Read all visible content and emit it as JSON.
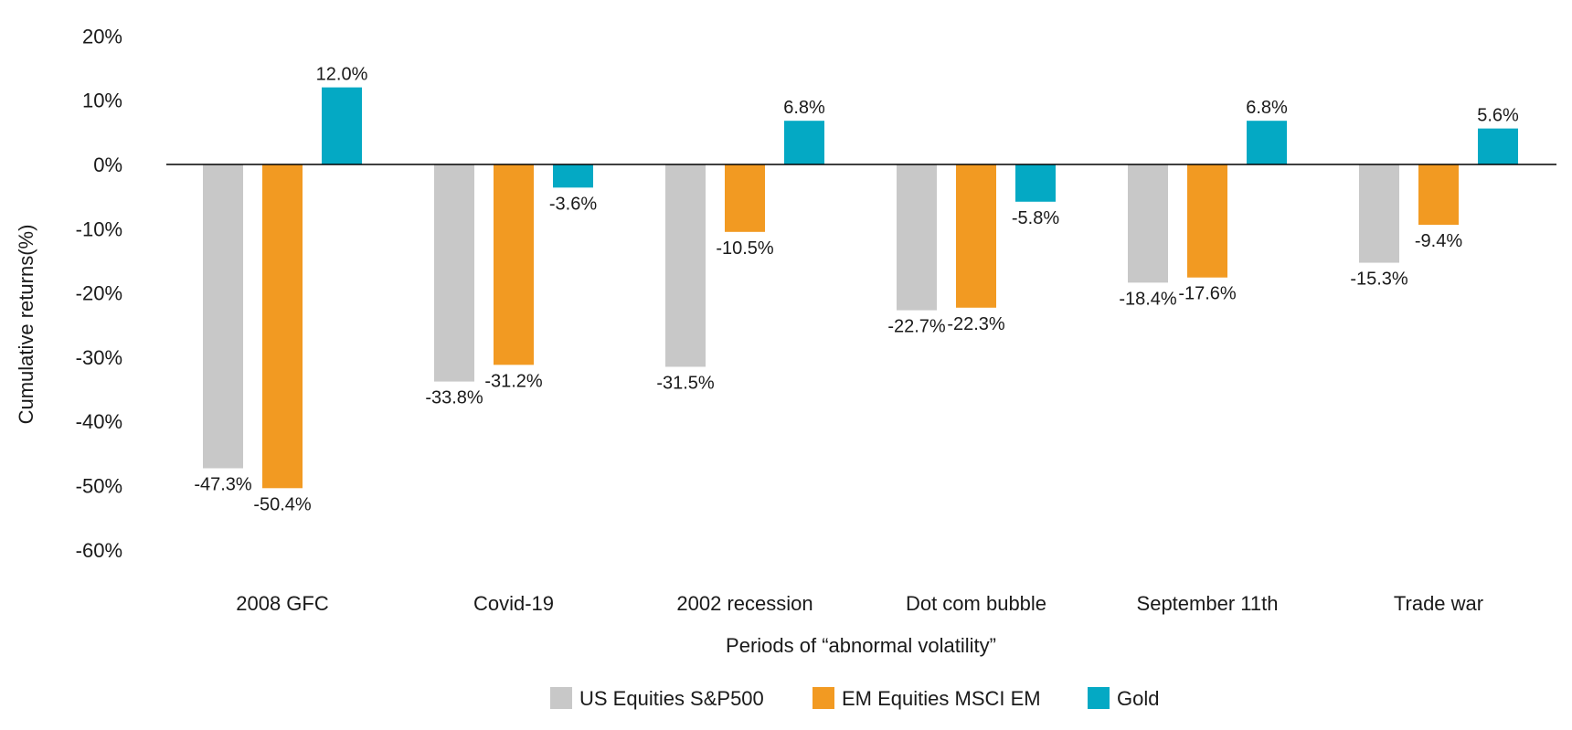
{
  "chart_data": {
    "type": "bar",
    "xlabel": "Periods of “abnormal volatility”",
    "ylabel": "Cumulative returns(%)",
    "ylim": [
      -60,
      20
    ],
    "yticks": [
      20,
      10,
      0,
      -10,
      -20,
      -30,
      -40,
      -50,
      -60
    ],
    "ytick_format": "%",
    "grid": false,
    "legend_position": "bottom",
    "categories": [
      "2008 GFC",
      "Covid-19",
      "2002 recession",
      "Dot com bubble",
      "September 11th",
      "Trade war"
    ],
    "series": [
      {
        "name": "US Equities S&P500",
        "color": "#c8c8c8",
        "values": [
          -47.3,
          -33.8,
          -31.5,
          -22.7,
          -18.4,
          -15.3
        ],
        "labels": [
          "-47.3%",
          "-33.8%",
          "-31.5%",
          "-22.7%",
          "-18.4%",
          "-15.3%"
        ]
      },
      {
        "name": "EM Equities MSCI EM",
        "color": "#f29a22",
        "values": [
          -50.4,
          -31.2,
          -10.5,
          -22.3,
          -17.6,
          -9.4
        ],
        "labels": [
          "-50.4%",
          "-31.2%",
          "-10.5%",
          "-22.3%",
          "-17.6%",
          "-9.4%"
        ]
      },
      {
        "name": "Gold",
        "color": "#04a9c4",
        "values": [
          12.0,
          -3.6,
          6.8,
          -5.8,
          6.8,
          5.6
        ],
        "labels": [
          "12.0%",
          "-3.6%",
          "6.8%",
          "-5.8%",
          "6.8%",
          "5.6%"
        ]
      }
    ]
  }
}
